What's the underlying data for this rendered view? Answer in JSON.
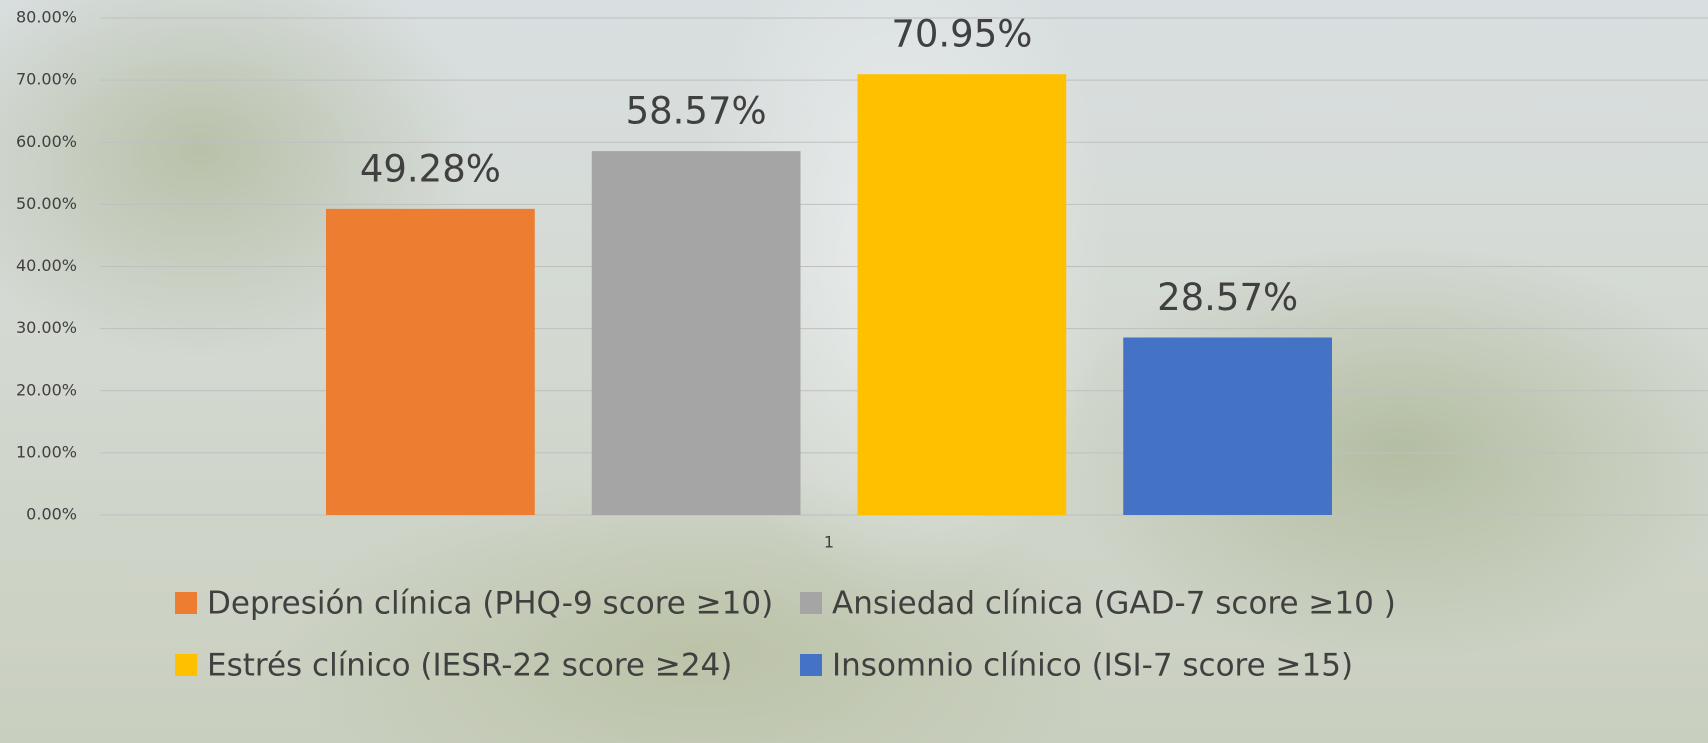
{
  "chart_data": {
    "type": "bar",
    "categories": [
      "1"
    ],
    "series": [
      {
        "name": "Depresión clínica (PHQ-9 score ≥10)",
        "color": "#ed7d31",
        "values": [
          49.28
        ],
        "value_labels": [
          "49.28%"
        ]
      },
      {
        "name": "Ansiedad clínica (GAD-7 score ≥10 )",
        "color": "#a5a5a5",
        "values": [
          58.57
        ],
        "value_labels": [
          "58.57%"
        ]
      },
      {
        "name": "Estrés clínico (IESR-22 score ≥24)",
        "color": "#ffc000",
        "values": [
          70.95
        ],
        "value_labels": [
          "70.95%"
        ]
      },
      {
        "name": "Insomnio clínico (ISI-7 score ≥15)",
        "color": "#4472c4",
        "values": [
          28.57
        ],
        "value_labels": [
          "28.57%"
        ]
      }
    ],
    "ylim": [
      0,
      80
    ],
    "yticks": [
      {
        "value": 0,
        "label": "0.00%"
      },
      {
        "value": 10,
        "label": "10.00%"
      },
      {
        "value": 20,
        "label": "20.00%"
      },
      {
        "value": 30,
        "label": "30.00%"
      },
      {
        "value": 40,
        "label": "40.00%"
      },
      {
        "value": 50,
        "label": "50.00%"
      },
      {
        "value": 60,
        "label": "60.00%"
      },
      {
        "value": 70,
        "label": "70.00%"
      },
      {
        "value": 80,
        "label": "80.00%"
      }
    ],
    "grid": true,
    "legend": "bottom"
  }
}
